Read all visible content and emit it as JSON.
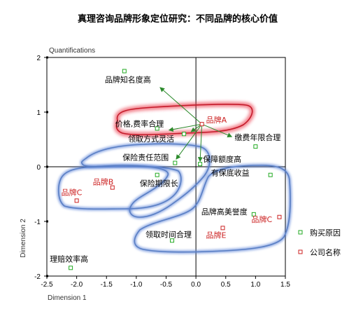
{
  "chart_data": {
    "type": "scatter",
    "title": "真理咨询品牌形象定位研究：不同品牌的核心价值",
    "xlabel": "Dimension 1",
    "ylabel": "Dimension 2",
    "top_label": "Quantifications",
    "xlim": [
      -2.5,
      1.5
    ],
    "ylim": [
      -2.0,
      2.0
    ],
    "xticks": [
      -2.5,
      -2.0,
      -1.5,
      -1.0,
      -0.5,
      0.0,
      0.5,
      1.0,
      1.5
    ],
    "xtick_labels": [
      "-2.5",
      "-2.0",
      "-1.5",
      "-1.0",
      "-0.5",
      "0.0",
      "0.5",
      "1.0",
      "1.5"
    ],
    "yticks": [
      2,
      1,
      0,
      -1,
      -2
    ],
    "ytick_labels": [
      "2",
      "1",
      "0",
      "-1",
      "-2"
    ],
    "grid": false,
    "legend_position": "right",
    "series": [
      {
        "name": "购买原因",
        "color": "#22aa22",
        "points": [
          {
            "label": "品牌知名度高",
            "x": -1.2,
            "y": 1.75
          },
          {
            "label": "价格,费率合理",
            "x": -0.65,
            "y": 0.7
          },
          {
            "label": "领取方式灵活",
            "x": -0.2,
            "y": 0.6
          },
          {
            "label": "缴费年限合理",
            "x": 1.0,
            "y": 0.37
          },
          {
            "label": "保险责任范围",
            "x": -0.35,
            "y": 0.07
          },
          {
            "label": "保障额度高",
            "x": 0.07,
            "y": 0.05
          },
          {
            "label": "有保底收益",
            "x": 1.25,
            "y": -0.15
          },
          {
            "label": "保险期限长",
            "x": -0.65,
            "y": -0.15
          },
          {
            "label": "品牌高美誉度",
            "x": 0.97,
            "y": -0.87
          },
          {
            "label": "领取时间合理",
            "x": -0.4,
            "y": -1.35
          },
          {
            "label": "理赔效率高",
            "x": -2.1,
            "y": -1.85
          }
        ]
      },
      {
        "name": "公司名称",
        "color": "#cc2222",
        "points": [
          {
            "label": "品牌A",
            "x": 0.1,
            "y": 0.78
          },
          {
            "label": "品牌B",
            "x": -1.4,
            "y": -0.38
          },
          {
            "label": "品牌C",
            "x": -2.0,
            "y": -0.62
          },
          {
            "label": "品牌C",
            "x": 1.4,
            "y": -0.92
          },
          {
            "label": "品牌E",
            "x": 0.45,
            "y": -1.12
          }
        ]
      }
    ],
    "arrows_from": "品牌A",
    "arrows_to": [
      "品牌知名度高",
      "价格,费率合理",
      "领取方式灵活",
      "保险责任范围",
      "保障额度高",
      "缴费年限合理"
    ]
  }
}
